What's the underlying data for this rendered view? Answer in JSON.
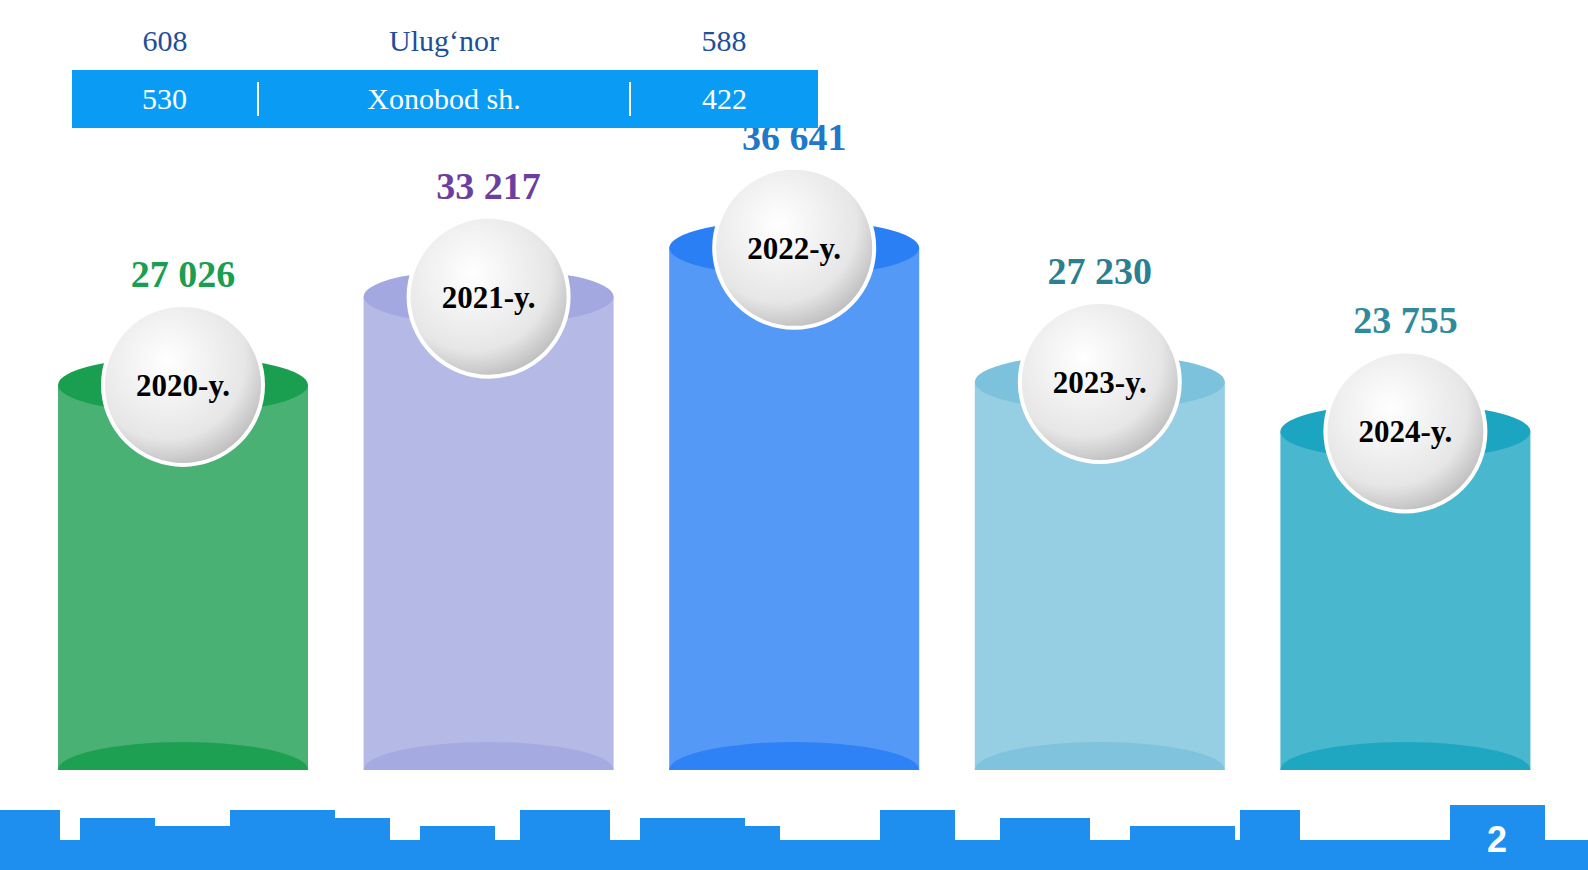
{
  "chart_data": {
    "type": "bar",
    "categories": [
      "2020-y.",
      "2021-y.",
      "2022-y.",
      "2023-y.",
      "2024-y."
    ],
    "values": [
      27026,
      33217,
      36641,
      27230,
      23755
    ],
    "value_labels": [
      "27 026",
      "33 217",
      "36 641",
      "27 230",
      "23 755"
    ],
    "colors": [
      "#1a9e50",
      "#a3a8e0",
      "#2a7ff5",
      "#7cc2dc",
      "#1ba5c0"
    ],
    "ylim": [
      0,
      40000
    ],
    "data_labels": true,
    "tick_labels": false,
    "grid": false
  },
  "table": {
    "rows": [
      [
        "608",
        "Ulug‘nor",
        "588"
      ],
      [
        "530",
        "Xonobod sh.",
        "422"
      ]
    ]
  },
  "page_number": "2"
}
